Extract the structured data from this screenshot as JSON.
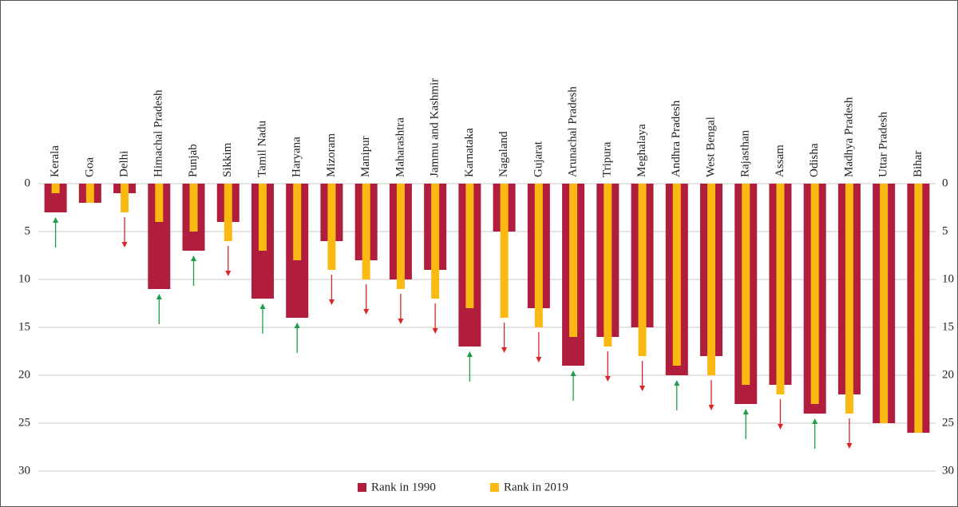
{
  "chart_data": {
    "type": "bar",
    "categories": [
      "Kerala",
      "Goa",
      "Delhi",
      "Himachal Pradesh",
      "Punjab",
      "Sikkim",
      "Tamil Nadu",
      "Haryana",
      "Mizoram",
      "Manipur",
      "Maharashtra",
      "Jammu and Kashmir",
      "Karnataka",
      "Nagaland",
      "Gujarat",
      "Arunachal Pradesh",
      "Tripura",
      "Meghalaya",
      "Andhra Pradesh",
      "West Bengal",
      "Rajasthan",
      "Assam",
      "Odisha",
      "Madhya Pradesh",
      "Uttar Pradesh",
      "Bihar"
    ],
    "series": [
      {
        "name": "Rank in 1990",
        "color": "#b11d3c",
        "values": [
          3,
          2,
          1,
          11,
          7,
          4,
          12,
          14,
          6,
          8,
          10,
          9,
          17,
          5,
          13,
          19,
          16,
          15,
          20,
          18,
          23,
          21,
          24,
          22,
          25,
          26
        ]
      },
      {
        "name": "Rank in 2019",
        "color": "#fbb914",
        "values": [
          1,
          2,
          3,
          4,
          5,
          6,
          7,
          8,
          9,
          10,
          11,
          12,
          13,
          14,
          15,
          16,
          17,
          18,
          19,
          20,
          21,
          22,
          23,
          24,
          25,
          26
        ]
      }
    ],
    "ylim": [
      0,
      30
    ],
    "yticks": [
      0,
      5,
      10,
      15,
      20,
      25,
      30
    ],
    "y_inverted": true,
    "grid": true,
    "up_color": "#1e9e4a",
    "down_color": "#d8262a",
    "legend": "bottom"
  }
}
